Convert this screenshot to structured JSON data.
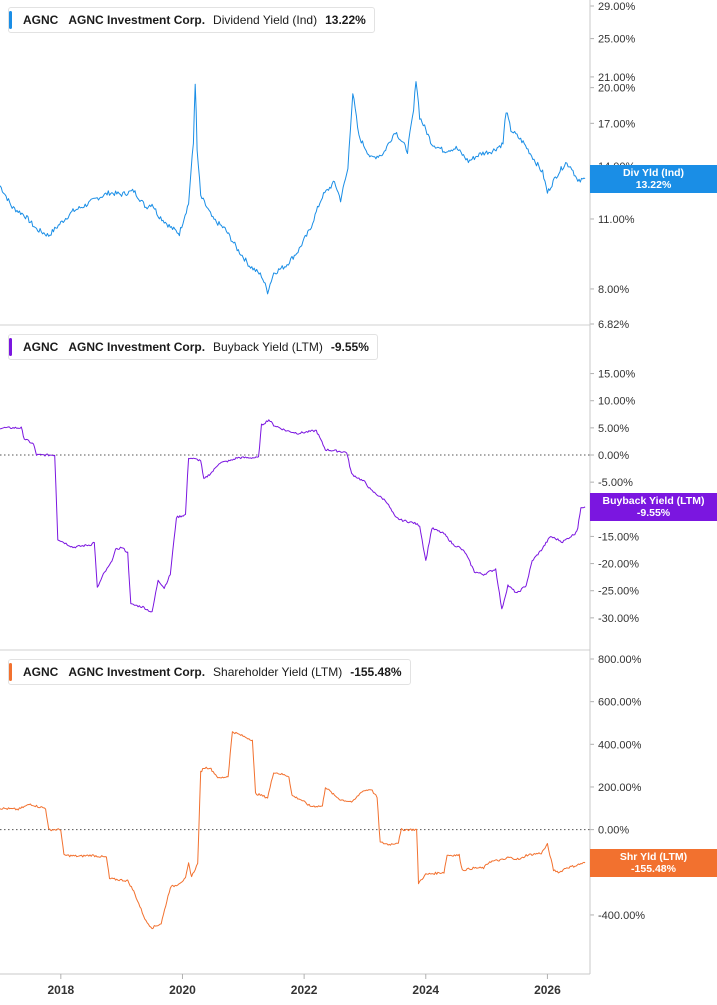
{
  "chart_data": [
    {
      "type": "line",
      "legend": {
        "ticker": "AGNC",
        "company": "AGNC Investment Corp.",
        "metric": "Dividend Yield (Ind)",
        "value": "13.22%"
      },
      "tag": {
        "label": "Div Yld (Ind)",
        "value": "13.22%"
      },
      "color": "#1a8ee6",
      "log": true,
      "ylim": [
        6.82,
        29.0
      ],
      "ticks": [
        {
          "v": 29.0,
          "label": "29.00%"
        },
        {
          "v": 25.0,
          "label": "25.00%"
        },
        {
          "v": 21.0,
          "label": "21.00%"
        },
        {
          "v": 20.0,
          "label": "20.00%"
        },
        {
          "v": 17.0,
          "label": "17.00%"
        },
        {
          "v": 14.0,
          "label": "14.00%"
        },
        {
          "v": 11.0,
          "label": "11.00%"
        },
        {
          "v": 8.0,
          "label": "8.00%"
        },
        {
          "v": 6.82,
          "label": "6.82%"
        }
      ],
      "points": [
        [
          2017.0,
          12.8
        ],
        [
          2017.2,
          11.6
        ],
        [
          2017.4,
          11.2
        ],
        [
          2017.6,
          10.5
        ],
        [
          2017.8,
          10.2
        ],
        [
          2018.0,
          10.8
        ],
        [
          2018.2,
          11.4
        ],
        [
          2018.4,
          11.7
        ],
        [
          2018.6,
          12.1
        ],
        [
          2018.8,
          12.4
        ],
        [
          2019.0,
          12.3
        ],
        [
          2019.2,
          12.5
        ],
        [
          2019.4,
          11.6
        ],
        [
          2019.5,
          11.8
        ],
        [
          2019.6,
          11.2
        ],
        [
          2019.8,
          10.6
        ],
        [
          2019.95,
          10.3
        ],
        [
          2020.1,
          11.8
        ],
        [
          2020.18,
          15.5
        ],
        [
          2020.21,
          20.5
        ],
        [
          2020.24,
          15.0
        ],
        [
          2020.3,
          12.2
        ],
        [
          2020.5,
          11.0
        ],
        [
          2020.7,
          10.5
        ],
        [
          2020.9,
          9.6
        ],
        [
          2021.1,
          8.9
        ],
        [
          2021.3,
          8.5
        ],
        [
          2021.4,
          7.9
        ],
        [
          2021.5,
          8.6
        ],
        [
          2021.7,
          8.9
        ],
        [
          2021.9,
          9.5
        ],
        [
          2022.1,
          10.5
        ],
        [
          2022.3,
          12.2
        ],
        [
          2022.5,
          13.0
        ],
        [
          2022.6,
          12.0
        ],
        [
          2022.72,
          13.8
        ],
        [
          2022.8,
          19.5
        ],
        [
          2022.9,
          16.0
        ],
        [
          2023.1,
          14.5
        ],
        [
          2023.3,
          14.8
        ],
        [
          2023.5,
          16.4
        ],
        [
          2023.7,
          15.0
        ],
        [
          2023.8,
          18.0
        ],
        [
          2023.84,
          20.8
        ],
        [
          2023.9,
          17.5
        ],
        [
          2024.1,
          15.5
        ],
        [
          2024.3,
          15.0
        ],
        [
          2024.5,
          15.2
        ],
        [
          2024.7,
          14.3
        ],
        [
          2024.9,
          14.8
        ],
        [
          2025.1,
          15.0
        ],
        [
          2025.27,
          15.5
        ],
        [
          2025.32,
          18.0
        ],
        [
          2025.4,
          16.5
        ],
        [
          2025.6,
          15.6
        ],
        [
          2025.8,
          14.3
        ],
        [
          2025.92,
          13.6
        ],
        [
          2026.0,
          12.4
        ],
        [
          2026.15,
          13.4
        ],
        [
          2026.3,
          14.2
        ],
        [
          2026.4,
          13.9
        ],
        [
          2026.5,
          13.0
        ],
        [
          2026.62,
          13.22
        ]
      ]
    },
    {
      "type": "line",
      "legend": {
        "ticker": "AGNC",
        "company": "AGNC Investment Corp.",
        "metric": "Buyback Yield (LTM)",
        "value": "-9.55%"
      },
      "tag": {
        "label": "Buyback Yield (LTM)",
        "value": "-9.55%"
      },
      "color": "#7b16e0",
      "log": false,
      "zeroline": true,
      "ylim": [
        -31.5,
        17.5
      ],
      "ticks": [
        {
          "v": 15,
          "label": "15.00%"
        },
        {
          "v": 10,
          "label": "10.00%"
        },
        {
          "v": 5,
          "label": "5.00%"
        },
        {
          "v": 0,
          "label": "0.00%"
        },
        {
          "v": -5,
          "label": "-5.00%"
        },
        {
          "v": -15,
          "label": "-15.00%"
        },
        {
          "v": -20,
          "label": "-20.00%"
        },
        {
          "v": -25,
          "label": "-25.00%"
        },
        {
          "v": -30,
          "label": "-30.00%"
        }
      ],
      "points": [
        [
          2017.0,
          5.0
        ],
        [
          2017.35,
          5.0
        ],
        [
          2017.4,
          3.0
        ],
        [
          2017.55,
          2.0
        ],
        [
          2017.6,
          0.0
        ],
        [
          2017.9,
          0.0
        ],
        [
          2017.95,
          -15.5
        ],
        [
          2018.2,
          -17.0
        ],
        [
          2018.5,
          -16.5
        ],
        [
          2018.55,
          -16.0
        ],
        [
          2018.6,
          -24.5
        ],
        [
          2018.7,
          -22.0
        ],
        [
          2018.82,
          -20.0
        ],
        [
          2018.9,
          -17.5
        ],
        [
          2019.0,
          -17.0
        ],
        [
          2019.1,
          -18.0
        ],
        [
          2019.15,
          -27.5
        ],
        [
          2019.35,
          -28.0
        ],
        [
          2019.5,
          -29.0
        ],
        [
          2019.6,
          -23.0
        ],
        [
          2019.7,
          -24.5
        ],
        [
          2019.8,
          -22.0
        ],
        [
          2019.9,
          -11.5
        ],
        [
          2020.05,
          -11.0
        ],
        [
          2020.1,
          -0.5
        ],
        [
          2020.3,
          -1.0
        ],
        [
          2020.35,
          -4.5
        ],
        [
          2020.5,
          -3.0
        ],
        [
          2020.6,
          -1.5
        ],
        [
          2020.8,
          -1.0
        ],
        [
          2020.9,
          -0.5
        ],
        [
          2021.25,
          -0.5
        ],
        [
          2021.3,
          5.5
        ],
        [
          2021.42,
          6.5
        ],
        [
          2021.5,
          5.5
        ],
        [
          2021.7,
          4.5
        ],
        [
          2021.9,
          4.0
        ],
        [
          2022.2,
          4.5
        ],
        [
          2022.35,
          1.0
        ],
        [
          2022.7,
          0.5
        ],
        [
          2022.75,
          -2.0
        ],
        [
          2022.78,
          -3.5
        ],
        [
          2023.0,
          -5.0
        ],
        [
          2023.1,
          -6.5
        ],
        [
          2023.35,
          -8.5
        ],
        [
          2023.5,
          -11.5
        ],
        [
          2023.6,
          -12.0
        ],
        [
          2023.8,
          -12.5
        ],
        [
          2023.9,
          -13.0
        ],
        [
          2024.0,
          -19.5
        ],
        [
          2024.1,
          -13.5
        ],
        [
          2024.3,
          -14.5
        ],
        [
          2024.45,
          -16.5
        ],
        [
          2024.55,
          -17.0
        ],
        [
          2024.65,
          -18.0
        ],
        [
          2024.8,
          -21.5
        ],
        [
          2024.95,
          -22.0
        ],
        [
          2025.15,
          -21.0
        ],
        [
          2025.25,
          -28.5
        ],
        [
          2025.35,
          -24.0
        ],
        [
          2025.5,
          -25.5
        ],
        [
          2025.65,
          -24.0
        ],
        [
          2025.75,
          -19.5
        ],
        [
          2025.9,
          -17.5
        ],
        [
          2026.05,
          -15.0
        ],
        [
          2026.25,
          -16.0
        ],
        [
          2026.45,
          -14.5
        ],
        [
          2026.5,
          -13.5
        ],
        [
          2026.55,
          -9.55
        ],
        [
          2026.62,
          -9.55
        ]
      ]
    },
    {
      "type": "line",
      "legend": {
        "ticker": "AGNC",
        "company": "AGNC Investment Corp.",
        "metric": "Shareholder Yield (LTM)",
        "value": "-155.48%"
      },
      "tag": {
        "label": "Shr Yld (LTM)",
        "value": "-155.48%"
      },
      "color": "#f2712f",
      "log": false,
      "zeroline": true,
      "ylim": [
        -480,
        800
      ],
      "ticks": [
        {
          "v": 800,
          "label": "800.00%"
        },
        {
          "v": 600,
          "label": "600.00%"
        },
        {
          "v": 400,
          "label": "400.00%"
        },
        {
          "v": 200,
          "label": "200.00%"
        },
        {
          "v": 0,
          "label": "0.00%"
        },
        {
          "v": -200,
          "label": "-200.00%"
        },
        {
          "v": -400,
          "label": "-400.00%"
        }
      ],
      "points": [
        [
          2017.0,
          100
        ],
        [
          2017.3,
          95
        ],
        [
          2017.5,
          120
        ],
        [
          2017.6,
          110
        ],
        [
          2017.75,
          100
        ],
        [
          2017.8,
          0
        ],
        [
          2018.0,
          0
        ],
        [
          2018.05,
          -120
        ],
        [
          2018.3,
          -125
        ],
        [
          2018.5,
          -120
        ],
        [
          2018.75,
          -130
        ],
        [
          2018.8,
          -230
        ],
        [
          2019.1,
          -240
        ],
        [
          2019.2,
          -290
        ],
        [
          2019.4,
          -430
        ],
        [
          2019.5,
          -460
        ],
        [
          2019.65,
          -440
        ],
        [
          2019.8,
          -270
        ],
        [
          2019.9,
          -260
        ],
        [
          2020.05,
          -230
        ],
        [
          2020.1,
          -160
        ],
        [
          2020.15,
          -220
        ],
        [
          2020.25,
          -160
        ],
        [
          2020.3,
          270
        ],
        [
          2020.35,
          290
        ],
        [
          2020.45,
          290
        ],
        [
          2020.6,
          240
        ],
        [
          2020.75,
          250
        ],
        [
          2020.82,
          460
        ],
        [
          2020.9,
          450
        ],
        [
          2021.15,
          420
        ],
        [
          2021.2,
          170
        ],
        [
          2021.4,
          150
        ],
        [
          2021.5,
          270
        ],
        [
          2021.75,
          250
        ],
        [
          2021.8,
          160
        ],
        [
          2021.95,
          140
        ],
        [
          2022.1,
          110
        ],
        [
          2022.3,
          110
        ],
        [
          2022.35,
          200
        ],
        [
          2022.5,
          160
        ],
        [
          2022.6,
          140
        ],
        [
          2022.8,
          130
        ],
        [
          2022.95,
          180
        ],
        [
          2023.1,
          190
        ],
        [
          2023.2,
          150
        ],
        [
          2023.25,
          -60
        ],
        [
          2023.4,
          -70
        ],
        [
          2023.55,
          -60
        ],
        [
          2023.6,
          0
        ],
        [
          2023.85,
          0
        ],
        [
          2023.88,
          -250
        ],
        [
          2024.0,
          -210
        ],
        [
          2024.3,
          -200
        ],
        [
          2024.35,
          -120
        ],
        [
          2024.55,
          -120
        ],
        [
          2024.6,
          -190
        ],
        [
          2024.8,
          -180
        ],
        [
          2024.95,
          -180
        ],
        [
          2025.05,
          -150
        ],
        [
          2025.3,
          -140
        ],
        [
          2025.35,
          -130
        ],
        [
          2025.55,
          -140
        ],
        [
          2025.65,
          -120
        ],
        [
          2025.9,
          -110
        ],
        [
          2026.0,
          -70
        ],
        [
          2026.1,
          -190
        ],
        [
          2026.2,
          -200
        ],
        [
          2026.3,
          -180
        ],
        [
          2026.45,
          -170
        ],
        [
          2026.55,
          -160
        ],
        [
          2026.62,
          -155.48
        ]
      ]
    }
  ],
  "x_axis": {
    "xlim": [
      2017.0,
      2026.7
    ],
    "ticks": [
      {
        "v": 2018,
        "label": "2018"
      },
      {
        "v": 2020,
        "label": "2020"
      },
      {
        "v": 2022,
        "label": "2022"
      },
      {
        "v": 2024,
        "label": "2024"
      },
      {
        "v": 2026,
        "label": "2026"
      }
    ]
  }
}
